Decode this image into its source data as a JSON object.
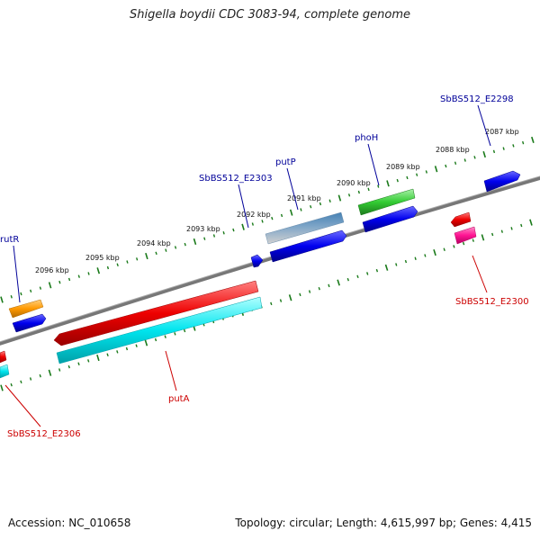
{
  "title": "Shigella boydii CDC 3083-94, complete genome",
  "footer": {
    "accession": "Accession: NC_010658",
    "summary": "Topology: circular; Length: 4,615,997 bp; Genes: 4,415"
  },
  "ruler_labels": [
    "2087 kbp",
    "2088 kbp",
    "2089 kbp",
    "2090 kbp",
    "2091 kbp",
    "2092 kbp",
    "2093 kbp",
    "2094 kbp",
    "2095 kbp",
    "2096 kbp"
  ],
  "gene_labels": [
    {
      "name": "rutR",
      "strand": "forward",
      "color": "#000099"
    },
    {
      "name": "SbBS512_E2303",
      "strand": "forward",
      "color": "#000099"
    },
    {
      "name": "putP",
      "strand": "forward",
      "color": "#000099"
    },
    {
      "name": "phoH",
      "strand": "forward",
      "color": "#000099"
    },
    {
      "name": "SbBS512_E2298",
      "strand": "forward",
      "color": "#000099"
    },
    {
      "name": "SbBS512_E2300",
      "strand": "reverse",
      "color": "#cc0000"
    },
    {
      "name": "putA",
      "strand": "reverse",
      "color": "#cc0000"
    },
    {
      "name": "SbBS512_E2306",
      "strand": "reverse",
      "color": "#cc0000"
    }
  ],
  "colors": {
    "backbone": "#777777",
    "ticks": "#1a7a1a",
    "orange": "#ff9900",
    "blue": "#0000ee",
    "steelblue": "#4682b4",
    "green": "#33cc33",
    "red": "#ee0000",
    "cyan": "#00e5ee",
    "magenta": "#ff1493"
  }
}
